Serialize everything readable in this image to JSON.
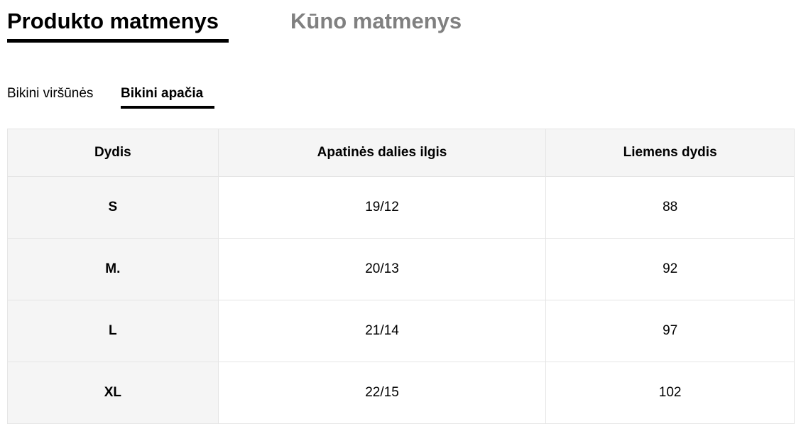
{
  "main_tabs": [
    {
      "label": "Produkto matmenys",
      "active": true
    },
    {
      "label": "Kūno matmenys",
      "active": false
    }
  ],
  "sub_tabs": [
    {
      "label": "Bikini viršūnės",
      "active": false
    },
    {
      "label": "Bikini apačia",
      "active": true
    }
  ],
  "table": {
    "headers": [
      "Dydis",
      "Apatinės dalies ilgis",
      "Liemens dydis"
    ],
    "rows": [
      [
        "S",
        "19/12",
        "88"
      ],
      [
        "M.",
        "20/13",
        "92"
      ],
      [
        "L",
        "21/14",
        "97"
      ],
      [
        "XL",
        "22/15",
        "102"
      ]
    ]
  }
}
